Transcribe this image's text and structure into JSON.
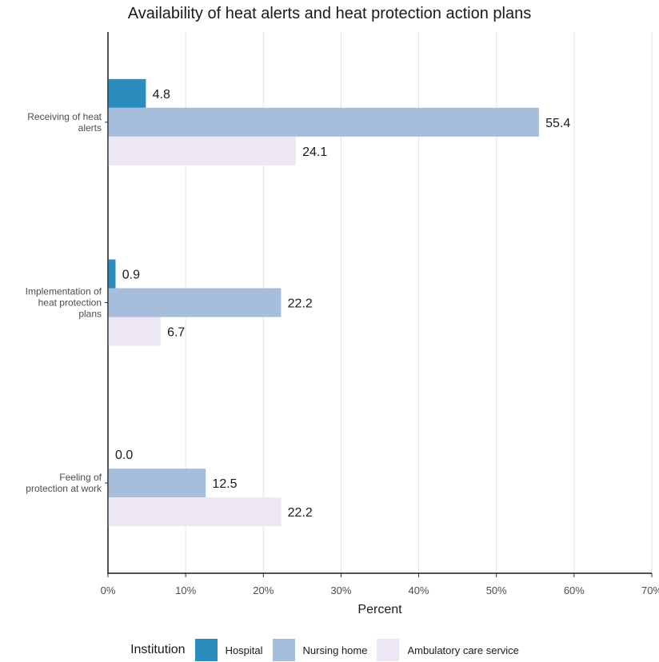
{
  "chart_data": {
    "type": "bar",
    "orientation": "horizontal",
    "title": "Availability of heat alerts and heat protection action plans",
    "xlabel": "Percent",
    "ylabel": "",
    "xlim": [
      0,
      70
    ],
    "x_ticks": [
      "0%",
      "10%",
      "20%",
      "30%",
      "40%",
      "50%",
      "60%",
      "70%"
    ],
    "grid": "vertical major gridlines",
    "categories": [
      [
        "Receiving of heat",
        "alerts"
      ],
      [
        "Implementation of",
        "heat protection",
        "plans"
      ],
      [
        "Feeling of",
        "protection at work"
      ]
    ],
    "series": [
      {
        "name": "Hospital",
        "color": "#2b8cbe",
        "values": [
          4.8,
          0.9,
          0.0
        ]
      },
      {
        "name": "Nursing home",
        "color": "#a6bddb",
        "values": [
          55.4,
          22.2,
          12.5
        ]
      },
      {
        "name": "Ambulatory care service",
        "color": "#ece7f2",
        "values": [
          24.1,
          6.7,
          22.2
        ]
      }
    ],
    "value_labels": [
      [
        "4.8",
        "0.9",
        "0.0"
      ],
      [
        "55.4",
        "22.2",
        "12.5"
      ],
      [
        "24.1",
        "6.7",
        "22.2"
      ]
    ],
    "legend": {
      "title": "Institution",
      "position": "bottom"
    }
  }
}
